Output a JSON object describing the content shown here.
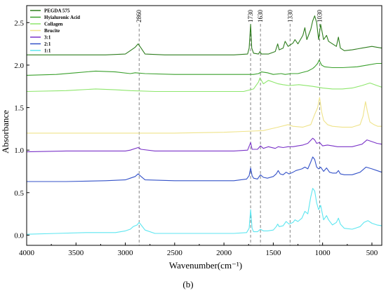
{
  "chart_data": {
    "type": "line",
    "xlabel": "Wavenumber(cm⁻¹)",
    "ylabel": "Absorbance",
    "panel_label": "(b)",
    "xlim": [
      4000,
      400
    ],
    "ylim": [
      -0.12,
      2.7
    ],
    "x_reversed": true,
    "x_ticks": [
      4000,
      3500,
      3000,
      2500,
      2000,
      1500,
      1000,
      500
    ],
    "y_ticks": [
      0.0,
      0.5,
      1.0,
      1.5,
      2.0,
      2.5
    ],
    "x_tick_labels": [
      "4000",
      "3500",
      "3000",
      "2500",
      "2000",
      "1500",
      "1000",
      "500"
    ],
    "y_tick_labels": [
      "0.0",
      "0.5",
      "1.0",
      "1.5",
      "2.0",
      "2.5"
    ],
    "grid": false,
    "legend_position": "top-left",
    "reference_lines": [
      {
        "x": 2860,
        "label": "2860"
      },
      {
        "x": 1730,
        "label": "1730"
      },
      {
        "x": 1630,
        "label": "1630"
      },
      {
        "x": 1330,
        "label": "1330"
      },
      {
        "x": 1030,
        "label": "1030"
      }
    ],
    "series": [
      {
        "name": "PEGDA 575",
        "color": "#2e7d1e",
        "points": [
          [
            4000,
            2.12
          ],
          [
            3600,
            2.12
          ],
          [
            3200,
            2.12
          ],
          [
            3000,
            2.13
          ],
          [
            2950,
            2.17
          ],
          [
            2900,
            2.21
          ],
          [
            2870,
            2.25
          ],
          [
            2840,
            2.2
          ],
          [
            2800,
            2.13
          ],
          [
            2600,
            2.12
          ],
          [
            2200,
            2.12
          ],
          [
            1900,
            2.12
          ],
          [
            1760,
            2.13
          ],
          [
            1745,
            2.2
          ],
          [
            1730,
            2.48
          ],
          [
            1718,
            2.2
          ],
          [
            1700,
            2.14
          ],
          [
            1650,
            2.13
          ],
          [
            1635,
            2.16
          ],
          [
            1620,
            2.13
          ],
          [
            1550,
            2.13
          ],
          [
            1480,
            2.16
          ],
          [
            1455,
            2.25
          ],
          [
            1440,
            2.18
          ],
          [
            1400,
            2.2
          ],
          [
            1380,
            2.28
          ],
          [
            1350,
            2.22
          ],
          [
            1300,
            2.26
          ],
          [
            1280,
            2.3
          ],
          [
            1250,
            2.25
          ],
          [
            1200,
            2.35
          ],
          [
            1180,
            2.44
          ],
          [
            1160,
            2.3
          ],
          [
            1120,
            2.42
          ],
          [
            1100,
            2.52
          ],
          [
            1080,
            2.58
          ],
          [
            1060,
            2.5
          ],
          [
            1040,
            2.3
          ],
          [
            1020,
            2.48
          ],
          [
            990,
            2.3
          ],
          [
            960,
            2.35
          ],
          [
            940,
            2.28
          ],
          [
            900,
            2.25
          ],
          [
            860,
            2.22
          ],
          [
            840,
            2.33
          ],
          [
            820,
            2.2
          ],
          [
            780,
            2.17
          ],
          [
            700,
            2.18
          ],
          [
            600,
            2.2
          ],
          [
            500,
            2.22
          ],
          [
            450,
            2.21
          ],
          [
            400,
            2.2
          ]
        ]
      },
      {
        "name": "Hyialuronic Acid",
        "color": "#3aa02c",
        "points": [
          [
            4000,
            1.88
          ],
          [
            3700,
            1.89
          ],
          [
            3500,
            1.91
          ],
          [
            3300,
            1.93
          ],
          [
            3100,
            1.92
          ],
          [
            2950,
            1.9
          ],
          [
            2900,
            1.91
          ],
          [
            2800,
            1.9
          ],
          [
            2500,
            1.89
          ],
          [
            2000,
            1.89
          ],
          [
            1800,
            1.89
          ],
          [
            1700,
            1.89
          ],
          [
            1650,
            1.9
          ],
          [
            1620,
            1.92
          ],
          [
            1560,
            1.91
          ],
          [
            1500,
            1.89
          ],
          [
            1420,
            1.9
          ],
          [
            1380,
            1.89
          ],
          [
            1320,
            1.9
          ],
          [
            1250,
            1.9
          ],
          [
            1150,
            1.93
          ],
          [
            1100,
            1.96
          ],
          [
            1080,
            1.98
          ],
          [
            1050,
            2.02
          ],
          [
            1035,
            2.06
          ],
          [
            1010,
            2.0
          ],
          [
            980,
            1.98
          ],
          [
            900,
            1.97
          ],
          [
            800,
            1.97
          ],
          [
            650,
            1.98
          ],
          [
            550,
            2.0
          ],
          [
            450,
            2.02
          ],
          [
            400,
            2.02
          ]
        ]
      },
      {
        "name": "Collagen",
        "color": "#8ee66c",
        "points": [
          [
            4000,
            1.69
          ],
          [
            3600,
            1.7
          ],
          [
            3300,
            1.72
          ],
          [
            3100,
            1.71
          ],
          [
            2950,
            1.7
          ],
          [
            2700,
            1.69
          ],
          [
            2200,
            1.69
          ],
          [
            1800,
            1.69
          ],
          [
            1700,
            1.72
          ],
          [
            1650,
            1.8
          ],
          [
            1635,
            1.85
          ],
          [
            1600,
            1.78
          ],
          [
            1550,
            1.82
          ],
          [
            1500,
            1.8
          ],
          [
            1450,
            1.78
          ],
          [
            1400,
            1.77
          ],
          [
            1340,
            1.76
          ],
          [
            1240,
            1.77
          ],
          [
            1100,
            1.75
          ],
          [
            1000,
            1.73
          ],
          [
            900,
            1.72
          ],
          [
            800,
            1.72
          ],
          [
            700,
            1.73
          ],
          [
            600,
            1.76
          ],
          [
            520,
            1.79
          ],
          [
            450,
            1.76
          ],
          [
            400,
            1.74
          ]
        ]
      },
      {
        "name": "Brucite",
        "color": "#efe38a",
        "points": [
          [
            4000,
            1.2
          ],
          [
            3500,
            1.2
          ],
          [
            3000,
            1.2
          ],
          [
            2500,
            1.2
          ],
          [
            2000,
            1.21
          ],
          [
            1800,
            1.22
          ],
          [
            1600,
            1.23
          ],
          [
            1450,
            1.27
          ],
          [
            1350,
            1.3
          ],
          [
            1300,
            1.28
          ],
          [
            1200,
            1.27
          ],
          [
            1120,
            1.3
          ],
          [
            1080,
            1.42
          ],
          [
            1050,
            1.5
          ],
          [
            1030,
            1.62
          ],
          [
            1010,
            1.45
          ],
          [
            990,
            1.35
          ],
          [
            950,
            1.3
          ],
          [
            900,
            1.28
          ],
          [
            800,
            1.27
          ],
          [
            700,
            1.27
          ],
          [
            620,
            1.3
          ],
          [
            590,
            1.4
          ],
          [
            565,
            1.57
          ],
          [
            545,
            1.45
          ],
          [
            520,
            1.33
          ],
          [
            480,
            1.3
          ],
          [
            440,
            1.28
          ],
          [
            400,
            1.28
          ]
        ]
      },
      {
        "name": "3:1",
        "color": "#7a33c8",
        "points": [
          [
            4000,
            0.98
          ],
          [
            3600,
            0.99
          ],
          [
            3300,
            0.99
          ],
          [
            3000,
            0.99
          ],
          [
            2950,
            1.0
          ],
          [
            2870,
            1.03
          ],
          [
            2840,
            1.01
          ],
          [
            2700,
            0.99
          ],
          [
            2200,
            0.99
          ],
          [
            1900,
            0.99
          ],
          [
            1760,
            1.0
          ],
          [
            1730,
            1.09
          ],
          [
            1715,
            1.01
          ],
          [
            1660,
            1.01
          ],
          [
            1630,
            1.05
          ],
          [
            1600,
            1.02
          ],
          [
            1550,
            1.04
          ],
          [
            1480,
            1.02
          ],
          [
            1450,
            1.04
          ],
          [
            1400,
            1.03
          ],
          [
            1350,
            1.04
          ],
          [
            1300,
            1.04
          ],
          [
            1250,
            1.05
          ],
          [
            1200,
            1.06
          ],
          [
            1150,
            1.08
          ],
          [
            1100,
            1.14
          ],
          [
            1080,
            1.12
          ],
          [
            1060,
            1.08
          ],
          [
            1030,
            1.09
          ],
          [
            1000,
            1.05
          ],
          [
            950,
            1.06
          ],
          [
            900,
            1.05
          ],
          [
            850,
            1.04
          ],
          [
            800,
            1.04
          ],
          [
            700,
            1.04
          ],
          [
            600,
            1.07
          ],
          [
            550,
            1.12
          ],
          [
            500,
            1.1
          ],
          [
            450,
            1.08
          ],
          [
            400,
            1.07
          ]
        ]
      },
      {
        "name": "2:1",
        "color": "#3452c8",
        "points": [
          [
            4000,
            0.63
          ],
          [
            3600,
            0.63
          ],
          [
            3200,
            0.64
          ],
          [
            3000,
            0.65
          ],
          [
            2950,
            0.67
          ],
          [
            2900,
            0.69
          ],
          [
            2870,
            0.72
          ],
          [
            2840,
            0.69
          ],
          [
            2800,
            0.65
          ],
          [
            2500,
            0.64
          ],
          [
            2100,
            0.64
          ],
          [
            1900,
            0.64
          ],
          [
            1770,
            0.66
          ],
          [
            1745,
            0.7
          ],
          [
            1730,
            0.79
          ],
          [
            1715,
            0.7
          ],
          [
            1700,
            0.67
          ],
          [
            1660,
            0.66
          ],
          [
            1630,
            0.71
          ],
          [
            1600,
            0.68
          ],
          [
            1560,
            0.67
          ],
          [
            1500,
            0.69
          ],
          [
            1470,
            0.72
          ],
          [
            1450,
            0.76
          ],
          [
            1430,
            0.72
          ],
          [
            1400,
            0.71
          ],
          [
            1370,
            0.74
          ],
          [
            1340,
            0.72
          ],
          [
            1300,
            0.74
          ],
          [
            1270,
            0.76
          ],
          [
            1240,
            0.77
          ],
          [
            1210,
            0.78
          ],
          [
            1180,
            0.8
          ],
          [
            1150,
            0.78
          ],
          [
            1120,
            0.86
          ],
          [
            1100,
            0.92
          ],
          [
            1080,
            0.89
          ],
          [
            1060,
            0.8
          ],
          [
            1040,
            0.78
          ],
          [
            1020,
            0.8
          ],
          [
            990,
            0.75
          ],
          [
            960,
            0.79
          ],
          [
            930,
            0.74
          ],
          [
            900,
            0.73
          ],
          [
            860,
            0.73
          ],
          [
            840,
            0.76
          ],
          [
            820,
            0.72
          ],
          [
            780,
            0.71
          ],
          [
            700,
            0.71
          ],
          [
            620,
            0.74
          ],
          [
            560,
            0.8
          ],
          [
            500,
            0.78
          ],
          [
            450,
            0.76
          ],
          [
            400,
            0.74
          ]
        ]
      },
      {
        "name": "1:1",
        "color": "#5de6f0",
        "points": [
          [
            4000,
            0.01
          ],
          [
            3700,
            0.02
          ],
          [
            3400,
            0.03
          ],
          [
            3100,
            0.03
          ],
          [
            3000,
            0.05
          ],
          [
            2950,
            0.07
          ],
          [
            2920,
            0.1
          ],
          [
            2880,
            0.12
          ],
          [
            2860,
            0.15
          ],
          [
            2840,
            0.12
          ],
          [
            2800,
            0.06
          ],
          [
            2700,
            0.02
          ],
          [
            2400,
            0.02
          ],
          [
            2100,
            0.02
          ],
          [
            1900,
            0.02
          ],
          [
            1770,
            0.03
          ],
          [
            1745,
            0.08
          ],
          [
            1730,
            0.3
          ],
          [
            1715,
            0.08
          ],
          [
            1700,
            0.04
          ],
          [
            1660,
            0.04
          ],
          [
            1630,
            0.07
          ],
          [
            1600,
            0.05
          ],
          [
            1560,
            0.05
          ],
          [
            1500,
            0.06
          ],
          [
            1470,
            0.1
          ],
          [
            1455,
            0.13
          ],
          [
            1440,
            0.1
          ],
          [
            1400,
            0.11
          ],
          [
            1370,
            0.16
          ],
          [
            1340,
            0.13
          ],
          [
            1300,
            0.15
          ],
          [
            1280,
            0.18
          ],
          [
            1250,
            0.16
          ],
          [
            1210,
            0.2
          ],
          [
            1180,
            0.28
          ],
          [
            1150,
            0.25
          ],
          [
            1120,
            0.45
          ],
          [
            1100,
            0.55
          ],
          [
            1080,
            0.52
          ],
          [
            1060,
            0.38
          ],
          [
            1040,
            0.3
          ],
          [
            1020,
            0.35
          ],
          [
            990,
            0.18
          ],
          [
            960,
            0.23
          ],
          [
            940,
            0.18
          ],
          [
            900,
            0.12
          ],
          [
            860,
            0.15
          ],
          [
            840,
            0.2
          ],
          [
            820,
            0.13
          ],
          [
            780,
            0.08
          ],
          [
            700,
            0.07
          ],
          [
            620,
            0.1
          ],
          [
            580,
            0.15
          ],
          [
            540,
            0.17
          ],
          [
            500,
            0.14
          ],
          [
            450,
            0.12
          ],
          [
            400,
            0.11
          ]
        ]
      }
    ]
  }
}
